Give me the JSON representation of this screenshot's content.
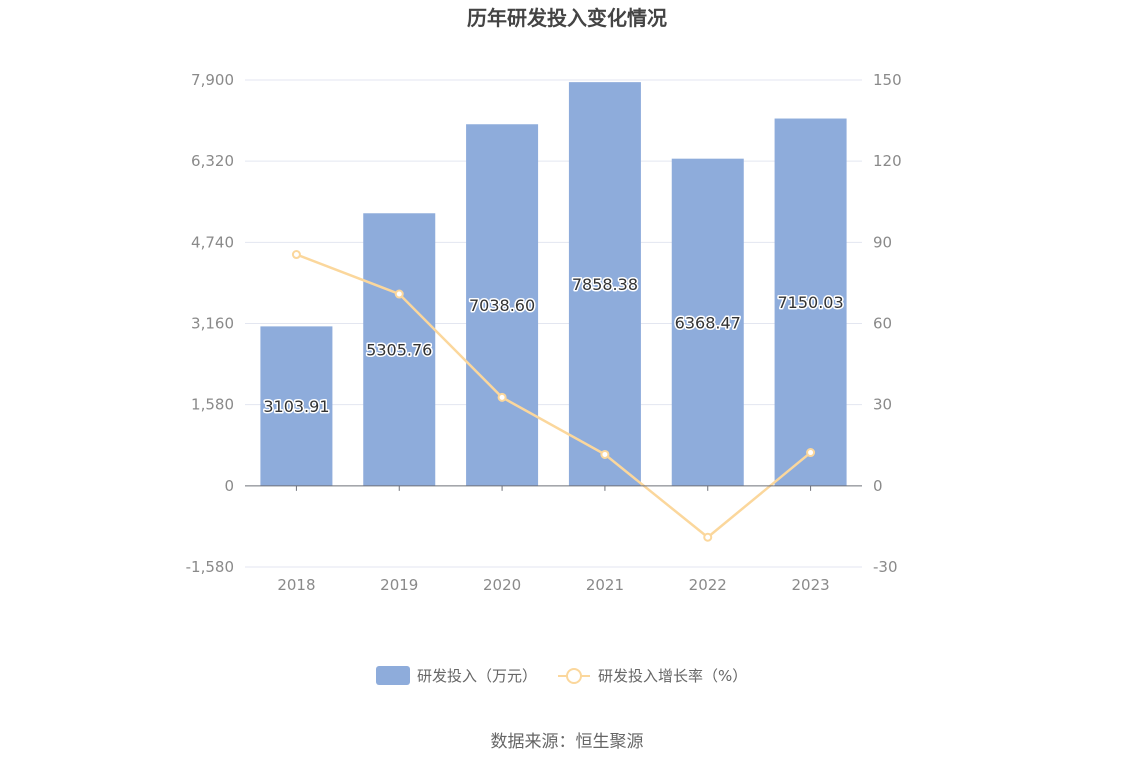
{
  "chart_data": {
    "type": "bar",
    "title": "历年研发投入变化情况",
    "categories": [
      "2018",
      "2019",
      "2020",
      "2021",
      "2022",
      "2023"
    ],
    "series": [
      {
        "name": "研发投入（万元）",
        "type": "bar",
        "axis": "left",
        "values": [
          3103.91,
          5305.76,
          7038.6,
          7858.38,
          6368.47,
          7150.03
        ],
        "labels": [
          "3103.91",
          "5305.76",
          "7038.60",
          "7858.38",
          "6368.47",
          "7150.03"
        ],
        "color": "#8eacdb"
      },
      {
        "name": "研发投入增长率（%）",
        "type": "line",
        "axis": "right",
        "values": [
          85.5,
          70.9,
          32.7,
          11.6,
          -19.0,
          12.3
        ],
        "color": "#fbd79c"
      }
    ],
    "y_left": {
      "ylim": [
        -1580,
        7900
      ],
      "ticks": [
        "-1,580",
        "0",
        "1,580",
        "3,160",
        "4,740",
        "6,320",
        "7,900"
      ]
    },
    "y_right": {
      "ylim": [
        -30,
        150
      ],
      "ticks": [
        "-30",
        "0",
        "30",
        "60",
        "90",
        "120",
        "150"
      ]
    },
    "legend_position": "bottom-center",
    "grid": true,
    "source": "数据来源：恒生聚源"
  }
}
